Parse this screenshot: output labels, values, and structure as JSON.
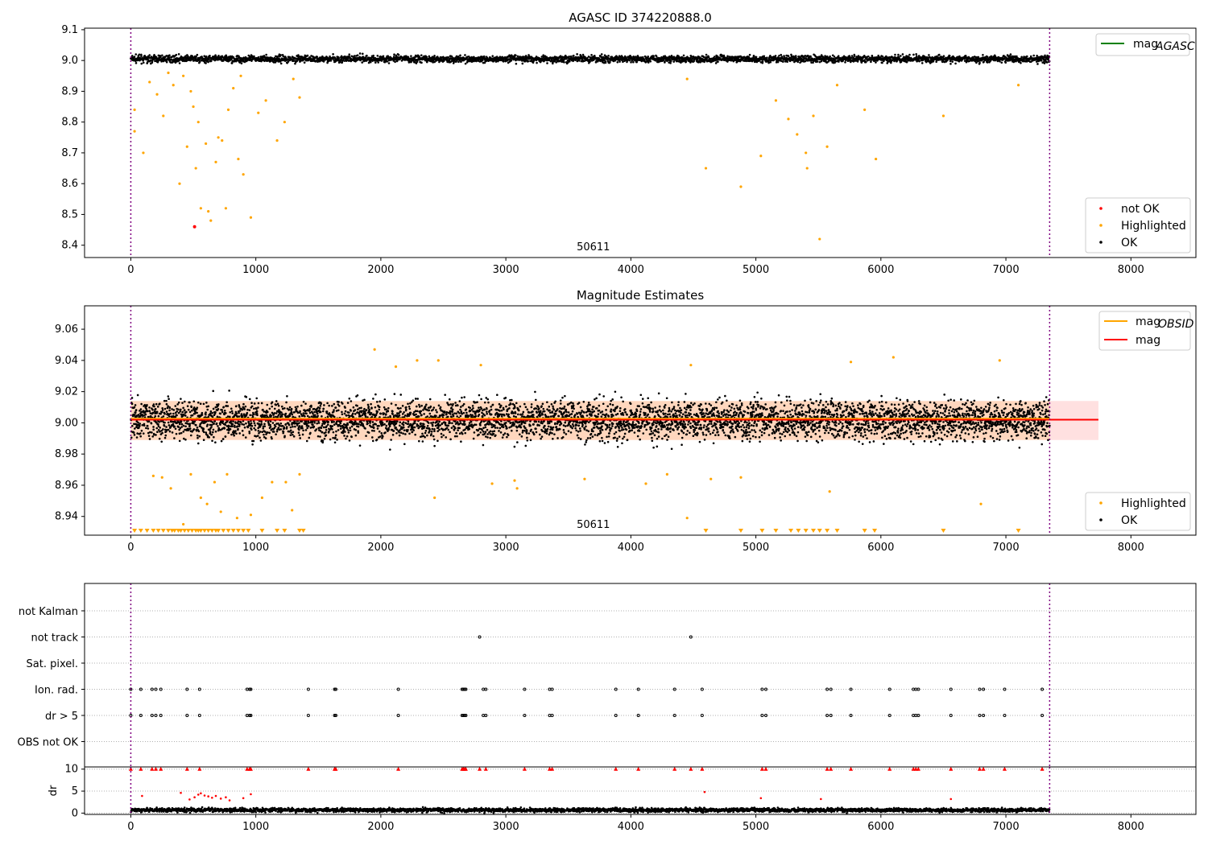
{
  "chart_data": [
    {
      "type": "scatter",
      "title": "AGASC ID 374220888.0",
      "xlim": [
        -370,
        8520
      ],
      "ylim": [
        8.36,
        9.105
      ],
      "xticks": [
        "0",
        "1000",
        "2000",
        "3000",
        "4000",
        "5000",
        "6000",
        "7000",
        "8000"
      ],
      "yticks": [
        "8.4",
        "8.5",
        "8.6",
        "8.7",
        "8.8",
        "8.9",
        "9.0",
        "9.1"
      ],
      "vlines_x": [
        0,
        7350
      ],
      "annotation": "50611",
      "legend_lines": [
        {
          "label_main": "mag",
          "label_sub": "AGASC",
          "color": "#008000"
        }
      ],
      "legend_points": [
        {
          "label": "not OK",
          "color": "#ff0000"
        },
        {
          "label": "Highlighted",
          "color": "#ffa500"
        },
        {
          "label": "OK",
          "color": "#000000"
        }
      ],
      "series": [
        {
          "name": "OK",
          "x_range": [
            0,
            7350
          ],
          "y_center": 9.005,
          "y_spread": 0.012
        },
        {
          "name": "Highlighted",
          "points": [
            [
              30,
              8.84
            ],
            [
              30,
              8.77
            ],
            [
              100,
              8.7
            ],
            [
              150,
              8.93
            ],
            [
              210,
              8.89
            ],
            [
              260,
              8.82
            ],
            [
              300,
              8.96
            ],
            [
              340,
              8.92
            ],
            [
              390,
              8.6
            ],
            [
              420,
              8.95
            ],
            [
              450,
              8.72
            ],
            [
              480,
              8.9
            ],
            [
              500,
              8.85
            ],
            [
              520,
              8.65
            ],
            [
              540,
              8.8
            ],
            [
              560,
              8.52
            ],
            [
              600,
              8.73
            ],
            [
              620,
              8.51
            ],
            [
              640,
              8.48
            ],
            [
              680,
              8.67
            ],
            [
              700,
              8.75
            ],
            [
              730,
              8.74
            ],
            [
              760,
              8.52
            ],
            [
              780,
              8.84
            ],
            [
              820,
              8.91
            ],
            [
              860,
              8.68
            ],
            [
              880,
              8.95
            ],
            [
              900,
              8.63
            ],
            [
              960,
              8.49
            ],
            [
              1020,
              8.83
            ],
            [
              1080,
              8.87
            ],
            [
              1170,
              8.74
            ],
            [
              1230,
              8.8
            ],
            [
              1300,
              8.94
            ],
            [
              1350,
              8.88
            ],
            [
              4450,
              8.94
            ],
            [
              4600,
              8.65
            ],
            [
              4880,
              8.59
            ],
            [
              5040,
              8.69
            ],
            [
              5160,
              8.87
            ],
            [
              5260,
              8.81
            ],
            [
              5330,
              8.76
            ],
            [
              5400,
              8.7
            ],
            [
              5410,
              8.65
            ],
            [
              5460,
              8.82
            ],
            [
              5510,
              8.42
            ],
            [
              5570,
              8.72
            ],
            [
              5650,
              8.92
            ],
            [
              5870,
              8.84
            ],
            [
              5960,
              8.68
            ],
            [
              6500,
              8.82
            ],
            [
              7100,
              8.92
            ]
          ]
        },
        {
          "name": "not OK",
          "points": [
            [
              510,
              8.46
            ]
          ]
        }
      ]
    },
    {
      "type": "scatter",
      "title": "Magnitude Estimates",
      "xlim": [
        -370,
        8520
      ],
      "ylim": [
        8.928,
        9.075
      ],
      "xticks": [
        "0",
        "1000",
        "2000",
        "3000",
        "4000",
        "5000",
        "6000",
        "7000",
        "8000"
      ],
      "yticks": [
        "8.94",
        "8.96",
        "8.98",
        "9.00",
        "9.02",
        "9.04",
        "9.06"
      ],
      "vlines_x": [
        0,
        7350
      ],
      "annotation": "50611",
      "mag_value": 9.002,
      "mag_band": [
        8.989,
        9.014
      ],
      "obsid_band": [
        8.989,
        9.014
      ],
      "legend_lines": [
        {
          "label_main": "mag",
          "label_sub": "OBSID",
          "color": "#ffa500"
        },
        {
          "label_main": "mag",
          "label_sub": "",
          "color": "#ff0000"
        }
      ],
      "legend_points": [
        {
          "label": "Highlighted",
          "color": "#ffa500"
        },
        {
          "label": "OK",
          "color": "#000000"
        }
      ],
      "series": [
        {
          "name": "OK",
          "x_range": [
            0,
            7350
          ],
          "y_center": 9.002,
          "y_spread": 0.013
        },
        {
          "name": "Highlighted",
          "points": [
            [
              180,
              8.966
            ],
            [
              250,
              8.965
            ],
            [
              320,
              8.958
            ],
            [
              420,
              8.935
            ],
            [
              480,
              8.967
            ],
            [
              560,
              8.952
            ],
            [
              610,
              8.948
            ],
            [
              670,
              8.962
            ],
            [
              720,
              8.943
            ],
            [
              770,
              8.967
            ],
            [
              850,
              8.939
            ],
            [
              960,
              8.941
            ],
            [
              1050,
              8.952
            ],
            [
              1130,
              8.962
            ],
            [
              1240,
              8.962
            ],
            [
              1290,
              8.944
            ],
            [
              1350,
              8.967
            ],
            [
              1950,
              9.047
            ],
            [
              2120,
              9.036
            ],
            [
              2290,
              9.04
            ],
            [
              2430,
              8.952
            ],
            [
              2460,
              9.04
            ],
            [
              2800,
              9.037
            ],
            [
              2890,
              8.961
            ],
            [
              3070,
              8.963
            ],
            [
              3090,
              8.958
            ],
            [
              3630,
              8.964
            ],
            [
              4120,
              8.961
            ],
            [
              4290,
              8.967
            ],
            [
              4450,
              8.939
            ],
            [
              4480,
              9.037
            ],
            [
              4640,
              8.964
            ],
            [
              4880,
              8.965
            ],
            [
              5590,
              8.956
            ],
            [
              5760,
              9.039
            ],
            [
              6100,
              9.042
            ],
            [
              6800,
              8.948
            ],
            [
              6950,
              9.04
            ]
          ]
        },
        {
          "name": "Highlighted below",
          "x": [
            30,
            80,
            130,
            180,
            220,
            260,
            300,
            330,
            350,
            380,
            400,
            430,
            460,
            490,
            520,
            540,
            560,
            590,
            620,
            650,
            680,
            700,
            740,
            780,
            820,
            860,
            900,
            940,
            1050,
            1170,
            1230,
            1350,
            1380,
            4600,
            4880,
            5050,
            5160,
            5280,
            5340,
            5400,
            5460,
            5510,
            5570,
            5650,
            5870,
            5950,
            6500,
            7100
          ]
        }
      ]
    },
    {
      "type": "scatter",
      "xlim": [
        -370,
        8520
      ],
      "categories": [
        "not Kalman",
        "not track",
        "Sat. pixel.",
        "Ion. rad.",
        "dr > 5",
        "OBS not OK"
      ],
      "vlines_x": [
        0,
        7350
      ],
      "flags": {
        "not track": [
          2790,
          4480
        ],
        "Ion. rad.": [
          0,
          80,
          170,
          200,
          240,
          450,
          550,
          930,
          950,
          960,
          1420,
          1630,
          1640,
          2140,
          2650,
          2660,
          2670,
          2680,
          2820,
          2840,
          3150,
          3350,
          3370,
          3880,
          4060,
          4350,
          4570,
          5050,
          5080,
          5570,
          5600,
          5760,
          6070,
          6260,
          6280,
          6300,
          6560,
          6790,
          6820,
          6990,
          7290
        ],
        "dr > 5": [
          0,
          80,
          170,
          200,
          240,
          450,
          550,
          930,
          950,
          960,
          1420,
          1630,
          1640,
          2140,
          2650,
          2660,
          2670,
          2680,
          2820,
          2840,
          3150,
          3350,
          3370,
          3880,
          4060,
          4350,
          4570,
          5050,
          5080,
          5570,
          5600,
          5760,
          6070,
          6260,
          6280,
          6300,
          6560,
          6790,
          6820,
          6990,
          7290
        ]
      }
    },
    {
      "type": "scatter",
      "xlim": [
        -370,
        8520
      ],
      "ylim": [
        -0.3,
        10.5
      ],
      "ylabel": "dr",
      "xticks": [
        "0",
        "1000",
        "2000",
        "3000",
        "4000",
        "5000",
        "6000",
        "7000",
        "8000"
      ],
      "yticks": [
        "0",
        "5",
        "10"
      ],
      "vlines_x": [
        0,
        7350
      ],
      "series": [
        {
          "name": "OK",
          "x_range": [
            0,
            7350
          ],
          "y_center": 0.7,
          "y_spread": 0.5
        },
        {
          "name": "not OK",
          "points": [
            [
              90,
              3.9
            ],
            [
              400,
              4.6
            ],
            [
              470,
              3.1
            ],
            [
              510,
              3.6
            ],
            [
              540,
              4.2
            ],
            [
              560,
              4.5
            ],
            [
              590,
              4.0
            ],
            [
              620,
              3.8
            ],
            [
              650,
              3.5
            ],
            [
              680,
              3.9
            ],
            [
              720,
              3.3
            ],
            [
              760,
              3.6
            ],
            [
              790,
              2.9
            ],
            [
              900,
              3.4
            ],
            [
              960,
              4.3
            ],
            [
              4590,
              4.8
            ],
            [
              5040,
              3.4
            ],
            [
              5520,
              3.2
            ],
            [
              6560,
              3.2
            ]
          ]
        },
        {
          "name": "not OK at 10",
          "x": [
            0,
            80,
            170,
            200,
            240,
            450,
            550,
            930,
            950,
            960,
            1420,
            1630,
            1640,
            2140,
            2650,
            2660,
            2670,
            2680,
            2790,
            2840,
            3150,
            3350,
            3370,
            3880,
            4060,
            4350,
            4480,
            4570,
            5050,
            5080,
            5570,
            5600,
            5760,
            6070,
            6260,
            6280,
            6300,
            6560,
            6790,
            6820,
            6990,
            7290
          ]
        }
      ]
    }
  ]
}
